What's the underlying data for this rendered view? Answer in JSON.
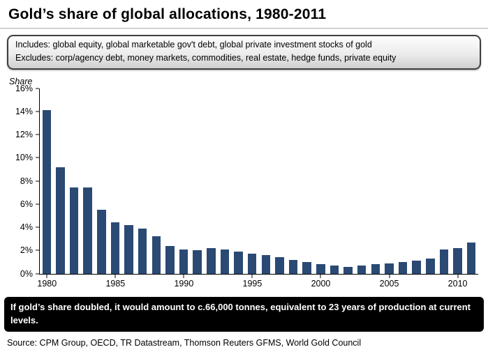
{
  "title": "Gold’s share of global allocations, 1980-2011",
  "scope_box": {
    "line1": "Includes: global equity, global marketable gov't debt, global private investment stocks of gold",
    "line2": "Excludes: corp/agency debt, money markets, commodities, real estate, hedge funds, private equity"
  },
  "chart_data": {
    "type": "bar",
    "title": "Gold’s share of global allocations, 1980-2011",
    "xlabel": "",
    "ylabel": "Share",
    "ylim": [
      0,
      16
    ],
    "grid": false,
    "legend": false,
    "bar_color": "#2a4a73",
    "y_tick_labels": [
      "0%",
      "2%",
      "4%",
      "6%",
      "8%",
      "10%",
      "12%",
      "14%",
      "16%"
    ],
    "x_tick_labels": [
      "1980",
      "1985",
      "1990",
      "1995",
      "2000",
      "2005",
      "2010"
    ],
    "x_tick_positions": [
      0,
      5,
      10,
      15,
      20,
      25,
      30
    ],
    "categories": [
      1980,
      1981,
      1982,
      1983,
      1984,
      1985,
      1986,
      1987,
      1988,
      1989,
      1990,
      1991,
      1992,
      1993,
      1994,
      1995,
      1996,
      1997,
      1998,
      1999,
      2000,
      2001,
      2002,
      2003,
      2004,
      2005,
      2006,
      2007,
      2008,
      2009,
      2010,
      2011
    ],
    "values": [
      14.1,
      9.2,
      7.4,
      7.4,
      5.5,
      4.4,
      4.2,
      3.9,
      3.2,
      2.4,
      2.1,
      2.0,
      2.2,
      2.1,
      1.9,
      1.7,
      1.6,
      1.4,
      1.2,
      1.0,
      0.8,
      0.7,
      0.6,
      0.7,
      0.8,
      0.9,
      1.0,
      1.1,
      1.3,
      2.1,
      2.2,
      2.7
    ]
  },
  "callout": "If gold’s share doubled, it would amount to c.66,000 tonnes, equivalent to 23 years of production at current levels.",
  "source": "Source: CPM Group, OECD, TR Datastream, Thomson Reuters GFMS, World Gold Council"
}
